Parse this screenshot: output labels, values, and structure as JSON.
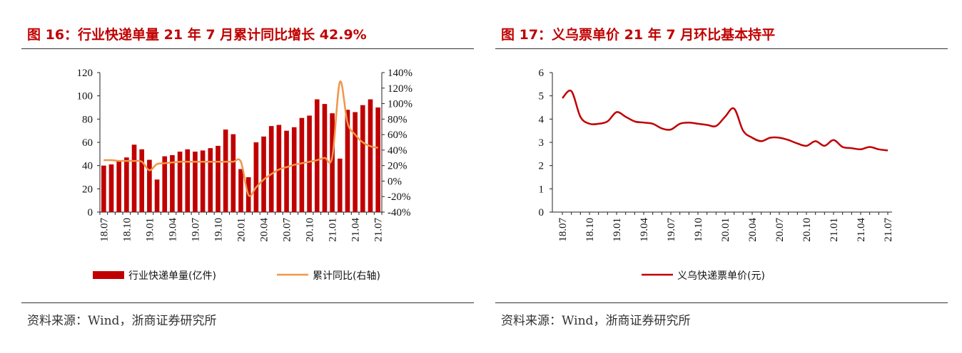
{
  "left": {
    "title": "图 16：行业快递单量 21 年 7 月累计同比增长 42.9%",
    "source": "资料来源：Wind，浙商证券研究所"
  },
  "right": {
    "title": "图 17：义乌票单价 21 年 7 月环比基本持平",
    "source": "资料来源：Wind，浙商证券研究所"
  },
  "chart_data": [
    {
      "type": "bar",
      "title": "图 16：行业快递单量 21 年 7 月累计同比增长 42.9%",
      "ylim": [
        0,
        120
      ],
      "yticks": [
        0,
        20,
        40,
        60,
        80,
        100,
        120
      ],
      "y2lim": [
        -40,
        140
      ],
      "y2ticks": [
        "-40%",
        "-20%",
        "0%",
        "20%",
        "40%",
        "60%",
        "80%",
        "100%",
        "120%",
        "140%"
      ],
      "xtick_labels": [
        "18.07",
        "18.10",
        "19.01",
        "19.04",
        "19.07",
        "19.10",
        "20.01",
        "20.04",
        "20.07",
        "20.10",
        "21.01",
        "21.04",
        "21.07"
      ],
      "x": [
        "18.07",
        "18.08",
        "18.09",
        "18.10",
        "18.11",
        "18.12",
        "19.01",
        "19.02",
        "19.03",
        "19.04",
        "19.05",
        "19.06",
        "19.07",
        "19.08",
        "19.09",
        "19.10",
        "19.11",
        "19.12",
        "20.01",
        "20.02",
        "20.03",
        "20.04",
        "20.05",
        "20.06",
        "20.07",
        "20.08",
        "20.09",
        "20.10",
        "20.11",
        "20.12",
        "21.01",
        "21.02",
        "21.03",
        "21.04",
        "21.05",
        "21.06",
        "21.07"
      ],
      "legend": [
        "行业快递单量(亿件)",
        "累计同比(右轴)"
      ],
      "colors": {
        "bar": "#c00000",
        "line": "#f0964a"
      },
      "series": [
        {
          "name": "行业快递单量(亿件)",
          "kind": "bar",
          "axis": "left",
          "values": [
            40,
            41,
            44,
            47,
            58,
            54,
            45,
            28,
            48,
            49,
            52,
            54,
            52,
            53,
            55,
            57,
            71,
            67,
            37,
            30,
            60,
            65,
            74,
            75,
            70,
            73,
            81,
            83,
            97,
            93,
            85,
            46,
            88,
            86,
            92,
            97,
            90
          ]
        },
        {
          "name": "累计同比(右轴)",
          "kind": "line",
          "axis": "right",
          "values": [
            27,
            27,
            26,
            26,
            26,
            25,
            14,
            22,
            23,
            24,
            25,
            25,
            25,
            25,
            25,
            25,
            25,
            25,
            25,
            -18,
            -8,
            2,
            9,
            15,
            18,
            21,
            23,
            25,
            27,
            30,
            31,
            128,
            75,
            60,
            50,
            45,
            43
          ]
        }
      ]
    },
    {
      "type": "line",
      "title": "图 17：义乌票单价 21 年 7 月环比基本持平",
      "ylim": [
        0,
        6
      ],
      "yticks": [
        0,
        1,
        2,
        3,
        4,
        5,
        6
      ],
      "xtick_labels": [
        "18.07",
        "18.10",
        "19.01",
        "19.04",
        "19.07",
        "19.10",
        "20.01",
        "20.04",
        "20.07",
        "20.10",
        "21.01",
        "21.04",
        "21.07"
      ],
      "x": [
        "18.07",
        "18.08",
        "18.09",
        "18.10",
        "18.11",
        "18.12",
        "19.01",
        "19.02",
        "19.03",
        "19.04",
        "19.05",
        "19.06",
        "19.07",
        "19.08",
        "19.09",
        "19.10",
        "19.11",
        "19.12",
        "20.01",
        "20.02",
        "20.03",
        "20.04",
        "20.05",
        "20.06",
        "20.07",
        "20.08",
        "20.09",
        "20.10",
        "20.11",
        "20.12",
        "21.01",
        "21.02",
        "21.03",
        "21.04",
        "21.05",
        "21.06",
        "21.07"
      ],
      "legend": [
        "义乌快递票单价(元)"
      ],
      "colors": {
        "line": "#c00000"
      },
      "series": [
        {
          "name": "义乌快递票单价(元)",
          "values": [
            4.9,
            5.2,
            4.1,
            3.8,
            3.8,
            3.9,
            4.3,
            4.1,
            3.9,
            3.85,
            3.8,
            3.6,
            3.55,
            3.8,
            3.85,
            3.8,
            3.75,
            3.7,
            4.1,
            4.45,
            3.5,
            3.2,
            3.05,
            3.2,
            3.2,
            3.1,
            2.95,
            2.85,
            3.05,
            2.85,
            3.1,
            2.8,
            2.75,
            2.7,
            2.8,
            2.7,
            2.65
          ]
        }
      ]
    }
  ]
}
